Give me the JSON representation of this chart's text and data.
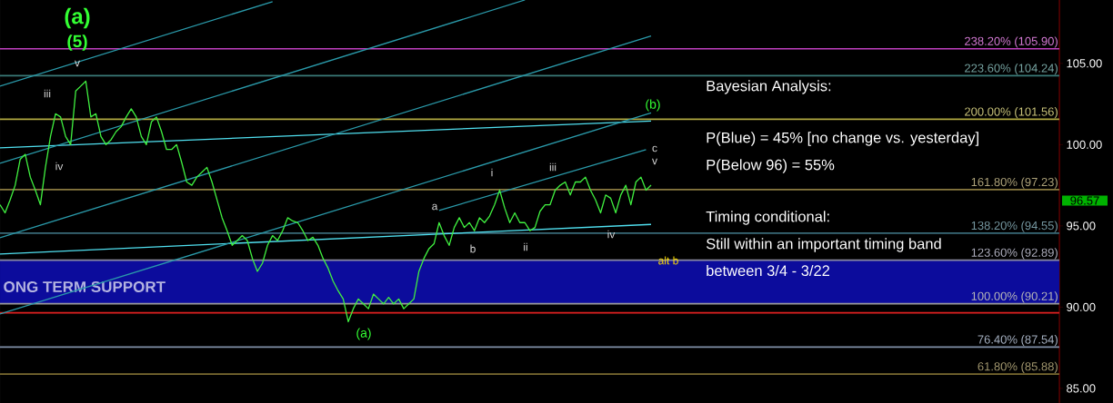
{
  "chart_data": {
    "type": "line",
    "ylim": [
      84.1,
      108.9
    ],
    "categories": [
      null,
      null,
      null,
      null,
      null,
      null,
      null,
      null,
      null,
      null,
      null,
      null,
      null,
      null,
      null,
      null,
      null,
      null,
      null,
      null,
      null,
      null,
      null,
      null,
      null,
      null,
      null,
      null,
      null,
      null,
      null,
      null,
      null,
      null,
      null,
      null,
      null,
      null,
      null,
      null,
      null,
      null,
      null,
      null,
      null,
      null,
      null,
      null,
      null,
      null,
      null,
      null,
      null,
      null,
      null,
      null,
      null,
      null,
      null,
      null,
      null,
      null,
      null,
      null,
      null,
      null,
      null,
      null,
      null,
      null,
      null,
      null,
      null,
      null,
      null,
      null,
      null,
      null,
      null,
      null,
      null,
      null,
      null,
      null,
      null,
      null,
      null,
      null,
      null,
      null,
      null,
      null,
      null,
      null,
      null,
      null,
      null,
      null,
      null,
      null,
      null,
      null,
      null,
      null,
      null,
      null,
      null,
      null,
      null,
      null,
      null,
      null,
      null,
      null,
      null,
      null,
      null,
      null,
      null,
      null,
      null,
      null,
      null,
      null,
      null,
      null,
      null,
      null,
      null,
      null
    ],
    "yticks": [
      {
        "value": 85,
        "label": "85.00"
      },
      {
        "value": 90,
        "label": "90.00"
      },
      {
        "value": 95,
        "label": "95.00"
      },
      {
        "value": 100,
        "label": "100.00"
      },
      {
        "value": 105,
        "label": "105.00"
      }
    ],
    "tick_labels": "y",
    "line_style": "solid",
    "series": [
      {
        "color": "#40f040",
        "values": [
          96.3,
          95.8,
          96.6,
          97.5,
          99.1,
          99.4,
          98.0,
          97.2,
          96.3,
          98.6,
          100.5,
          101.9,
          101.7,
          100.5,
          100.0,
          103.3,
          103.6,
          103.9,
          101.7,
          101.9,
          100.5,
          100.0,
          100.3,
          100.8,
          101.1,
          101.7,
          102.2,
          101.7,
          100.5,
          100.0,
          101.4,
          101.7,
          100.8,
          99.7,
          99.7,
          100.0,
          98.9,
          97.7,
          97.5,
          98.0,
          98.3,
          98.6,
          97.7,
          96.6,
          95.5,
          94.7,
          93.8,
          94.1,
          94.4,
          94.1,
          93.0,
          92.2,
          92.7,
          93.8,
          94.4,
          94.1,
          94.7,
          95.5,
          95.3,
          95.2,
          94.7,
          94.1,
          94.3,
          93.8,
          93.0,
          92.4,
          91.6,
          91.0,
          90.5,
          89.1,
          89.9,
          90.5,
          90.2,
          89.9,
          90.8,
          90.5,
          90.2,
          90.6,
          90.2,
          90.5,
          89.9,
          90.2,
          90.5,
          92.2,
          93.0,
          93.6,
          93.9,
          95.2,
          94.4,
          93.8,
          94.9,
          95.5,
          94.9,
          95.2,
          94.7,
          95.5,
          95.2,
          95.6,
          96.3,
          97.2,
          96.1,
          95.2,
          95.8,
          95.2,
          95.2,
          94.7,
          94.9,
          95.9,
          96.3,
          96.3,
          97.2,
          97.5,
          97.7,
          96.9,
          97.7,
          97.7,
          98.0,
          97.2,
          96.6,
          95.8,
          96.9,
          96.7,
          95.8,
          96.9,
          97.5,
          96.3,
          97.7,
          98.0,
          97.2,
          97.5
        ]
      },
      {
        "type": "line",
        "color": "#50e0f0",
        "values": [
          99.8,
          null,
          null,
          null,
          null,
          null,
          null,
          null,
          null,
          null,
          null,
          null,
          null,
          null,
          null,
          null,
          null,
          null,
          null,
          null,
          null,
          null,
          null,
          null,
          null,
          null,
          null,
          null,
          null,
          null,
          null,
          null,
          null,
          null,
          null,
          null,
          null,
          null,
          null,
          null,
          null,
          null,
          null,
          null,
          null,
          null,
          null,
          null,
          null,
          null,
          null,
          null,
          null,
          null,
          null,
          null,
          null,
          null,
          null,
          null,
          null,
          null,
          null,
          null,
          null,
          null,
          null,
          null,
          null,
          null,
          null,
          null,
          null,
          null,
          null,
          null,
          null,
          null,
          null,
          null,
          null,
          null,
          null,
          null,
          null,
          null,
          null,
          null,
          null,
          null,
          null,
          null,
          null,
          null,
          null,
          null,
          null,
          null,
          null,
          null,
          null,
          null,
          null,
          null,
          null,
          null,
          null,
          null,
          null,
          null,
          null,
          null,
          null,
          null,
          null,
          null,
          null,
          null,
          null,
          null,
          null,
          null,
          null,
          null,
          null,
          null,
          null,
          null,
          null,
          101.45
        ]
      },
      {
        "type": "line",
        "color": "#50e0f0",
        "values": [
          93.27,
          null,
          null,
          null,
          null,
          null,
          null,
          null,
          null,
          null,
          null,
          null,
          null,
          null,
          null,
          null,
          null,
          null,
          null,
          null,
          null,
          null,
          null,
          null,
          null,
          null,
          null,
          null,
          null,
          null,
          null,
          null,
          null,
          null,
          null,
          null,
          null,
          null,
          null,
          null,
          null,
          null,
          null,
          null,
          null,
          null,
          null,
          null,
          null,
          null,
          null,
          null,
          null,
          null,
          null,
          null,
          null,
          null,
          null,
          null,
          null,
          null,
          null,
          null,
          null,
          null,
          null,
          null,
          null,
          null,
          null,
          null,
          null,
          null,
          null,
          null,
          null,
          null,
          null,
          null,
          null,
          null,
          null,
          null,
          null,
          null,
          null,
          null,
          null,
          null,
          null,
          null,
          null,
          null,
          null,
          null,
          null,
          null,
          null,
          null,
          null,
          null,
          null,
          null,
          null,
          null,
          null,
          null,
          null,
          null,
          null,
          null,
          null,
          null,
          null,
          null,
          null,
          null,
          null,
          null,
          null,
          null,
          null,
          null,
          null,
          null,
          null,
          null,
          null,
          95.09
        ]
      },
      {
        "type": "line",
        "color": "#2a9aaa",
        "values": [
          103.6,
          null,
          null,
          null,
          null,
          null,
          null,
          null,
          null,
          null,
          null,
          null,
          null,
          null,
          null,
          null,
          null,
          null,
          null,
          null,
          null,
          null,
          null,
          null,
          null,
          null,
          null,
          null,
          null,
          null,
          null,
          null,
          null,
          null,
          null,
          null,
          null,
          null,
          null,
          null,
          null,
          null,
          null,
          null,
          null,
          null,
          null,
          null,
          null,
          null,
          null,
          null,
          null,
          null,
          108.8,
          null,
          null,
          null,
          null,
          null,
          null,
          null,
          null,
          null,
          null,
          null,
          null,
          null,
          null,
          null,
          null,
          null,
          null,
          null,
          null,
          null,
          null,
          null,
          null,
          null,
          null,
          null,
          null,
          null,
          null,
          null,
          null,
          null,
          null,
          null,
          null,
          null,
          null,
          null,
          null,
          null,
          null,
          null,
          null,
          null,
          null,
          null,
          null,
          null,
          null,
          null,
          null,
          null,
          null,
          null,
          null,
          null,
          null,
          null,
          null,
          null,
          null,
          null,
          null,
          null,
          null,
          null,
          null,
          null,
          null,
          null,
          null,
          null,
          null,
          null
        ]
      },
      {
        "type": "line",
        "color": "#2a9aaa",
        "values": [
          98.85,
          null,
          null,
          null,
          null,
          null,
          null,
          null,
          null,
          null,
          null,
          null,
          null,
          null,
          null,
          null,
          null,
          null,
          null,
          null,
          null,
          null,
          null,
          null,
          null,
          null,
          null,
          null,
          null,
          null,
          null,
          null,
          null,
          null,
          null,
          null,
          null,
          null,
          null,
          null,
          null,
          null,
          null,
          null,
          null,
          null,
          null,
          null,
          null,
          null,
          null,
          null,
          null,
          null,
          null,
          null,
          null,
          null,
          null,
          null,
          null,
          null,
          null,
          null,
          null,
          null,
          null,
          null,
          null,
          null,
          null,
          null,
          null,
          null,
          null,
          null,
          null,
          null,
          null,
          null,
          null,
          null,
          null,
          null,
          null,
          null,
          null,
          null,
          null,
          null,
          null,
          null,
          null,
          null,
          null,
          null,
          null,
          null,
          null,
          null,
          null,
          null,
          null,
          null,
          108.9,
          null,
          null,
          null,
          null,
          null,
          null,
          null,
          null,
          null,
          null,
          null,
          null,
          null,
          null,
          null,
          null,
          null,
          null,
          null,
          null,
          null,
          null,
          null,
          null,
          null
        ]
      },
      {
        "type": "line",
        "color": "#2a9aaa",
        "values": [
          94.27,
          null,
          null,
          null,
          null,
          null,
          null,
          null,
          null,
          null,
          null,
          null,
          null,
          null,
          null,
          null,
          null,
          null,
          null,
          null,
          null,
          null,
          null,
          null,
          null,
          null,
          null,
          null,
          null,
          null,
          null,
          null,
          null,
          null,
          null,
          null,
          null,
          null,
          null,
          null,
          null,
          null,
          null,
          null,
          null,
          null,
          null,
          null,
          null,
          null,
          null,
          null,
          null,
          null,
          null,
          null,
          null,
          null,
          null,
          null,
          null,
          null,
          null,
          null,
          null,
          null,
          null,
          null,
          null,
          null,
          null,
          null,
          null,
          null,
          null,
          null,
          null,
          null,
          null,
          null,
          null,
          null,
          null,
          null,
          null,
          null,
          null,
          null,
          null,
          null,
          null,
          null,
          null,
          null,
          null,
          null,
          null,
          null,
          null,
          null,
          null,
          null,
          null,
          null,
          null,
          null,
          null,
          null,
          null,
          null,
          null,
          null,
          null,
          null,
          null,
          null,
          null,
          null,
          null,
          null,
          null,
          null,
          null,
          null,
          null,
          null,
          null,
          null,
          null,
          106.68
        ]
      },
      {
        "type": "line",
        "color": "#2a9aaa",
        "values": [
          89.58,
          null,
          null,
          null,
          null,
          null,
          null,
          null,
          null,
          null,
          null,
          null,
          null,
          null,
          null,
          null,
          null,
          null,
          null,
          null,
          null,
          null,
          null,
          null,
          null,
          null,
          null,
          null,
          null,
          null,
          null,
          null,
          null,
          null,
          null,
          null,
          null,
          null,
          null,
          null,
          null,
          null,
          null,
          null,
          null,
          null,
          null,
          null,
          null,
          null,
          null,
          null,
          null,
          null,
          null,
          null,
          null,
          null,
          null,
          null,
          null,
          null,
          null,
          null,
          null,
          null,
          null,
          null,
          null,
          null,
          null,
          null,
          null,
          null,
          null,
          null,
          null,
          null,
          null,
          null,
          null,
          null,
          null,
          null,
          null,
          null,
          null,
          null,
          null,
          null,
          null,
          null,
          null,
          null,
          null,
          null,
          null,
          null,
          null,
          null,
          null,
          null,
          null,
          null,
          null,
          null,
          null,
          null,
          null,
          null,
          null,
          null,
          null,
          null,
          null,
          null,
          null,
          null,
          null,
          null,
          null,
          null,
          null,
          null,
          null,
          null,
          null,
          null,
          null,
          101.95
        ]
      },
      {
        "type": "line",
        "color": "#2a9aaa",
        "values": [
          null,
          null,
          null,
          null,
          null,
          null,
          null,
          null,
          null,
          null,
          null,
          null,
          null,
          null,
          null,
          null,
          null,
          null,
          null,
          null,
          null,
          null,
          null,
          null,
          null,
          null,
          null,
          null,
          null,
          null,
          null,
          null,
          null,
          null,
          null,
          null,
          null,
          null,
          null,
          null,
          null,
          null,
          null,
          null,
          null,
          null,
          null,
          null,
          null,
          null,
          null,
          null,
          null,
          null,
          null,
          null,
          null,
          null,
          null,
          null,
          null,
          null,
          null,
          null,
          null,
          null,
          null,
          null,
          null,
          null,
          null,
          null,
          null,
          null,
          null,
          null,
          null,
          null,
          null,
          null,
          null,
          null,
          null,
          null,
          null,
          null,
          null,
          95.95,
          null,
          null,
          null,
          null,
          null,
          null,
          null,
          null,
          null,
          null,
          null,
          null,
          null,
          null,
          null,
          null,
          null,
          null,
          null,
          null,
          null,
          null,
          null,
          null,
          null,
          null,
          null,
          null,
          null,
          null,
          null,
          null,
          null,
          null,
          null,
          null,
          null,
          null,
          null,
          null,
          99.69,
          null
        ]
      }
    ],
    "bands": [
      {
        "axis": "y",
        "from": 90.21,
        "to": 92.89,
        "label": "ONG TERM SUPPORT",
        "color": "#0c0c9c"
      }
    ],
    "ref_lines": [
      {
        "axis": "y",
        "value": 105.9,
        "label": "238.20% (105.90)",
        "color": "#c040c0"
      },
      {
        "axis": "y",
        "value": 104.24,
        "label": "223.60% (104.24)",
        "color": "#3a7a78"
      },
      {
        "axis": "y",
        "value": 101.56,
        "label": "200.00% (101.56)",
        "color": "#b0a840"
      },
      {
        "axis": "y",
        "value": 97.23,
        "label": "161.80% (97.23)",
        "color": "#8a7a40"
      },
      {
        "axis": "y",
        "value": 94.55,
        "label": "138.20% (94.55)",
        "color": "#3a6a78"
      },
      {
        "axis": "y",
        "value": 92.89,
        "label": "123.60% (92.89)",
        "color": "#8a8aa0"
      },
      {
        "axis": "y",
        "value": 90.21,
        "label": "100.00% (90.21)",
        "color": "#9a9a9a"
      },
      {
        "axis": "y",
        "value": 89.65,
        "color": "#e02020"
      },
      {
        "axis": "y",
        "value": 87.54,
        "label": "76.40% (87.54)",
        "color": "#8090a8"
      },
      {
        "axis": "y",
        "value": 85.88,
        "label": "61.80% (85.88)",
        "color": "#7a6a30"
      }
    ],
    "annotations": [
      "(a)",
      "(5)",
      "v",
      "iii",
      "iv",
      "(a)",
      "a",
      "b",
      "i",
      "ii",
      "iii",
      "iv",
      "(b)",
      "c",
      "v",
      "alt b",
      "96.57",
      "Bayesian Analysis:",
      "P(Blue) = 45% [no change vs. yesterday]",
      "P(Below 96) = 55%",
      "Timing conditional:",
      "Still within an important timing band",
      "between 3/4 - 3/22"
    ]
  }
}
